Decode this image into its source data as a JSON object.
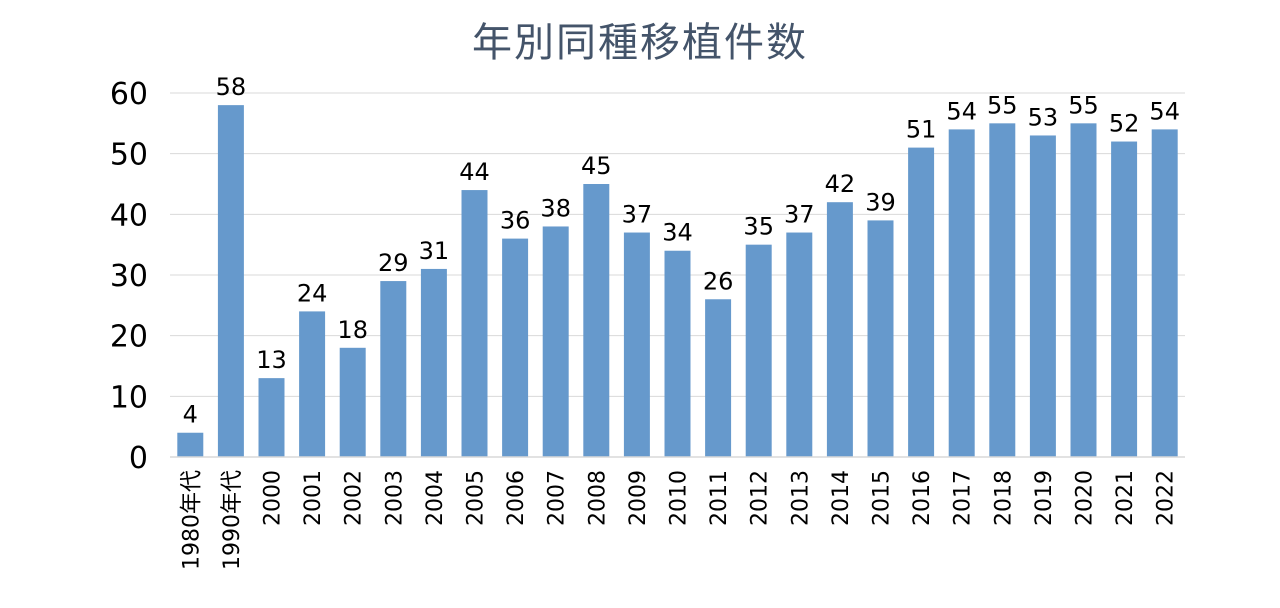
{
  "chart_data": {
    "type": "bar",
    "title": "年別同種移植件数",
    "xlabel": "",
    "ylabel": "",
    "categories": [
      "1980年代",
      "1990年代",
      "2000",
      "2001",
      "2002",
      "2003",
      "2004",
      "2005",
      "2006",
      "2007",
      "2008",
      "2009",
      "2010",
      "2011",
      "2012",
      "2013",
      "2014",
      "2015",
      "2016",
      "2017",
      "2018",
      "2019",
      "2020",
      "2021",
      "2022"
    ],
    "values": [
      4,
      58,
      13,
      24,
      18,
      29,
      31,
      44,
      36,
      38,
      45,
      37,
      34,
      26,
      35,
      37,
      42,
      39,
      51,
      54,
      55,
      53,
      55,
      52,
      54
    ],
    "ylim": [
      0,
      60
    ],
    "yticks": [
      0,
      10,
      20,
      30,
      40,
      50,
      60
    ],
    "grid": true,
    "legend": "none",
    "bar_color": "#6699cc",
    "data_labels": true
  }
}
